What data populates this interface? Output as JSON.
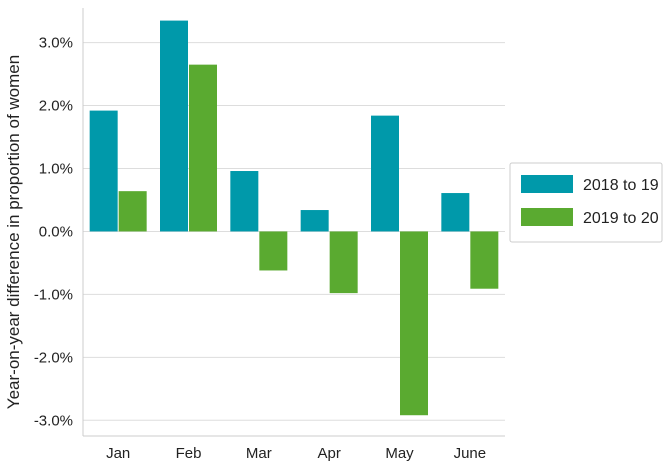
{
  "chart_data": {
    "type": "bar",
    "categories": [
      "Jan",
      "Feb",
      "Mar",
      "Apr",
      "May",
      "June"
    ],
    "series": [
      {
        "name": "2018 to 19",
        "color": "#0099aa",
        "values": [
          1.92,
          3.35,
          0.96,
          0.34,
          1.84,
          0.61
        ]
      },
      {
        "name": "2019 to 20",
        "color": "#5aaa30",
        "values": [
          0.64,
          2.65,
          -0.62,
          -0.98,
          -2.92,
          -0.91
        ]
      }
    ],
    "title": "",
    "xlabel": "",
    "ylabel": "Year-on-year difference in proportion of women",
    "ylim": [
      -3.25,
      3.55
    ],
    "yticks": [
      3.0,
      2.0,
      1.0,
      0.0,
      -1.0,
      -2.0,
      -3.0
    ],
    "ytick_labels": [
      "3.0%",
      "2.0%",
      "1.0%",
      "0.0%",
      "-1.0%",
      "-2.0%",
      "-3.0%"
    ],
    "grid": "horizontal",
    "legend": "right"
  }
}
